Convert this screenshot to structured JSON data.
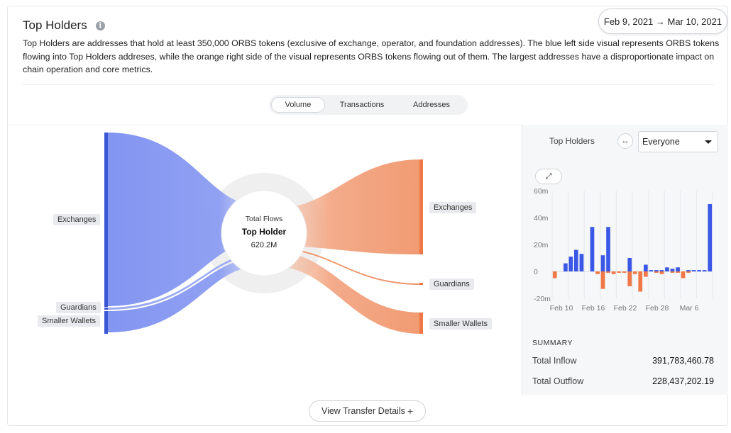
{
  "header": {
    "title": "Top Holders",
    "info_icon": "info-icon",
    "date_range": "Feb 9, 2021 → Mar 10, 2021",
    "description": "Top Holders are addresses that hold at least 350,000 ORBS tokens (exclusive of exchange, operator, and foundation addresses). The blue left side visual represents ORBS tokens flowing into Top Holders addreses, while the orange right side of the visual represents ORBS tokens flowing out of them. The largest addresses have a disproportionate impact on chain operation and core metrics."
  },
  "tabs": [
    {
      "label": "Volume",
      "active": true
    },
    {
      "label": "Transactions",
      "active": false
    },
    {
      "label": "Addresses",
      "active": false
    }
  ],
  "sankey": {
    "inflow_color": "#7b8ff0",
    "outflow_color": "#f0956a",
    "left_nodes": [
      "Exchanges",
      "Guardians",
      "Smaller Wallets"
    ],
    "right_nodes": [
      "Exchanges",
      "Guardians",
      "Smaller Wallets"
    ],
    "center": {
      "caption": "Total Flows",
      "name": "Top Holder",
      "value": "620.2M"
    }
  },
  "panel": {
    "holders_label": "Top Holders",
    "swap_icon": "swap-arrows-icon",
    "select_value": "Everyone",
    "expand_icon": "expand-icon",
    "summary_title": "SUMMARY",
    "total_inflow_label": "Total Inflow",
    "total_inflow_value": "391,783,460.78",
    "total_outflow_label": "Total Outflow",
    "total_outflow_value": "228,437,202.19"
  },
  "footer": {
    "button_label": "View Transfer Details",
    "plus_icon": "plus-icon"
  },
  "chart_data": {
    "type": "bar",
    "y_tick_labels": [
      "60m",
      "40m",
      "20m",
      "0",
      "-20m"
    ],
    "x_tick_labels": [
      "Feb 10",
      "Feb 16",
      "Feb 22",
      "Feb 28",
      "Mar 6"
    ],
    "ylim": [
      -20,
      60
    ],
    "grid": true,
    "series": [
      {
        "color": "#3b57e6",
        "values": [
          0,
          0,
          6,
          11,
          16,
          13,
          0,
          33,
          0,
          12,
          33,
          0,
          0,
          0,
          10,
          0,
          0,
          5,
          1,
          1,
          1,
          3,
          2,
          3,
          0,
          1,
          1,
          1,
          1,
          50
        ]
      },
      {
        "color": "#f07846",
        "values": [
          -5,
          0,
          0,
          0,
          0,
          0,
          0,
          0,
          -2,
          -13,
          -1,
          -2,
          -1,
          -1,
          -11,
          -2,
          -15,
          -4,
          0,
          -1,
          -2,
          0,
          -1,
          -1,
          -5,
          -1,
          0,
          0,
          0,
          0
        ]
      }
    ]
  }
}
